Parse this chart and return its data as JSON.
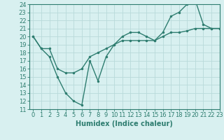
{
  "line1_x": [
    0,
    1,
    2,
    3,
    4,
    5,
    6,
    7,
    8,
    9,
    10,
    11,
    12,
    13,
    14,
    15,
    16,
    17,
    18,
    19,
    20,
    21,
    22,
    23
  ],
  "line1_y": [
    20.0,
    18.5,
    17.5,
    15.0,
    13.0,
    12.0,
    11.5,
    17.0,
    14.5,
    17.5,
    19.0,
    20.0,
    20.5,
    20.5,
    20.0,
    19.5,
    20.5,
    22.5,
    23.0,
    24.0,
    24.5,
    21.5,
    21.0,
    21.0
  ],
  "line2_x": [
    0,
    1,
    2,
    3,
    4,
    5,
    6,
    7,
    8,
    9,
    10,
    11,
    12,
    13,
    14,
    15,
    16,
    17,
    18,
    19,
    20,
    21,
    22,
    23
  ],
  "line2_y": [
    20.0,
    18.5,
    18.5,
    16.0,
    15.5,
    15.5,
    16.0,
    17.5,
    18.0,
    18.5,
    19.0,
    19.5,
    19.5,
    19.5,
    19.5,
    19.5,
    20.0,
    20.5,
    20.5,
    20.7,
    21.0,
    21.0,
    21.0,
    21.0
  ],
  "color": "#2e7d70",
  "bg_color": "#d8f0f0",
  "grid_color": "#b8dada",
  "xlabel": "Humidex (Indice chaleur)",
  "ylim": [
    11,
    24
  ],
  "xlim": [
    -0.5,
    23
  ],
  "yticks": [
    11,
    12,
    13,
    14,
    15,
    16,
    17,
    18,
    19,
    20,
    21,
    22,
    23,
    24
  ],
  "xticks": [
    0,
    1,
    2,
    3,
    4,
    5,
    6,
    7,
    8,
    9,
    10,
    11,
    12,
    13,
    14,
    15,
    16,
    17,
    18,
    19,
    20,
    21,
    22,
    23
  ],
  "xtick_labels": [
    "0",
    "1",
    "2",
    "3",
    "4",
    "5",
    "6",
    "7",
    "8",
    "9",
    "10",
    "11",
    "12",
    "13",
    "14",
    "15",
    "16",
    "17",
    "18",
    "19",
    "20",
    "21",
    "22",
    "23"
  ],
  "ytick_labels": [
    "11",
    "12",
    "13",
    "14",
    "15",
    "16",
    "17",
    "18",
    "19",
    "20",
    "21",
    "22",
    "23",
    "24"
  ],
  "markersize": 3,
  "linewidth": 1.0,
  "xlabel_fontsize": 7,
  "tick_fontsize": 6
}
